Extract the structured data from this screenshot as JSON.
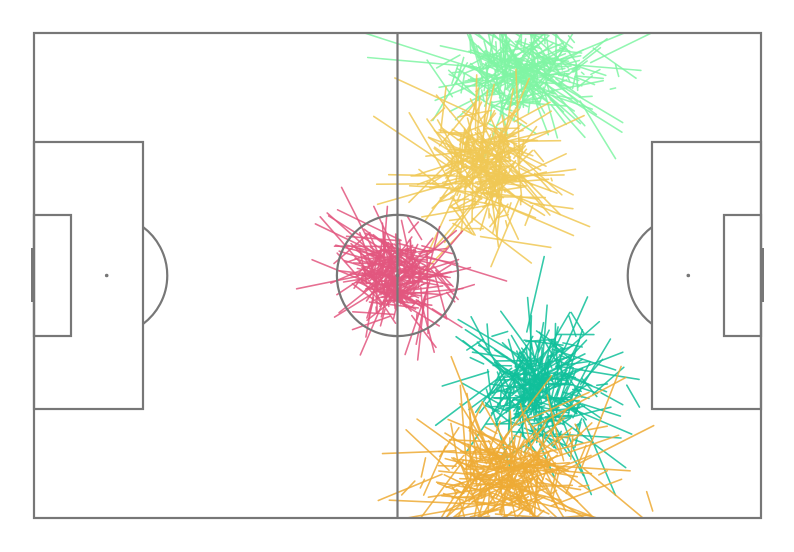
{
  "chart_data": {
    "type": "scatter",
    "title": "",
    "xlabel": "",
    "ylabel": "",
    "pitch": {
      "length": 120,
      "width": 80,
      "line_color": "#777777",
      "background": "#ffffff"
    },
    "xlim": [
      0,
      120
    ],
    "ylim": [
      0,
      80
    ],
    "grid": false,
    "legend": "none",
    "series": [
      {
        "color": "#80f5a4",
        "center": [
          80.4,
          73.8
        ],
        "spread": [
          8.2,
          4.2
        ],
        "passes": 300,
        "length_mean": 6,
        "length_max": 20
      },
      {
        "color": "#f0c855",
        "center": [
          73.8,
          57.6
        ],
        "spread": [
          6.5,
          6.4
        ],
        "passes": 300,
        "length_mean": 6,
        "length_max": 18
      },
      {
        "color": "#e2577f",
        "center": [
          60.0,
          40.0
        ],
        "spread": [
          5.0,
          4.7
        ],
        "passes": 300,
        "length_mean": 5,
        "length_max": 16
      },
      {
        "color": "#11c09b",
        "center": [
          82.8,
          21.6
        ],
        "spread": [
          7.0,
          6.2
        ],
        "passes": 300,
        "length_mean": 6,
        "length_max": 17
      },
      {
        "color": "#eeab35",
        "center": [
          78.0,
          7.4
        ],
        "spread": [
          9.0,
          5.6
        ],
        "passes": 300,
        "length_mean": 7,
        "length_max": 20
      }
    ]
  }
}
